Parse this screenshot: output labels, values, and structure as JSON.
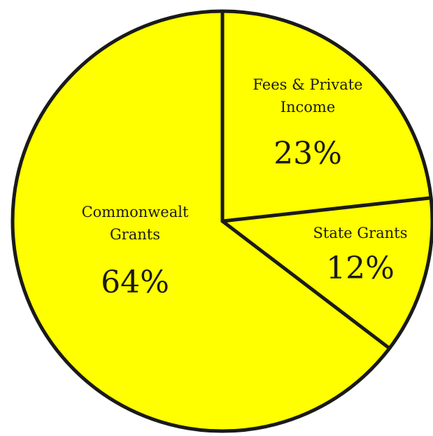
{
  "chart_data": {
    "type": "pie",
    "slices": [
      {
        "label_lines": [
          "Fees & Private",
          "Income"
        ],
        "value": 23,
        "value_text": "23%"
      },
      {
        "label_lines": [
          "State Grants"
        ],
        "value": 12,
        "value_text": "12%"
      },
      {
        "label_lines": [
          "Commonwealt",
          "Grants"
        ],
        "value": 64,
        "value_text": "64%"
      }
    ],
    "start": "12 o'clock",
    "direction": "clockwise",
    "slice_color": "#ffff00",
    "outline_color": "#1a1a1a",
    "legend": "none"
  }
}
